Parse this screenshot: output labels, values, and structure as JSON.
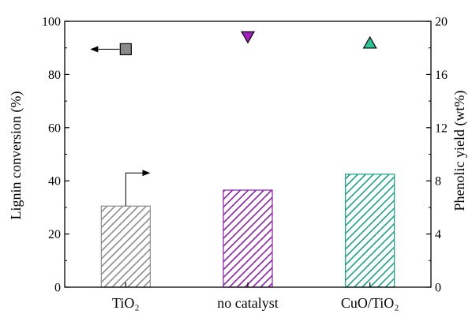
{
  "chart_data": {
    "type": "bar",
    "categories": [
      "TiO₂",
      "no catalyst",
      "CuO/TiO₂"
    ],
    "ylabel_left": "Lignin conversion (%)",
    "ylabel_right": "Phenolic yield (wt%)",
    "ylim_left": [
      0,
      100
    ],
    "yticks_left": [
      0,
      20,
      40,
      60,
      80,
      100
    ],
    "ylim_right": [
      0,
      20
    ],
    "yticks_right": [
      0,
      4,
      8,
      12,
      16,
      20
    ],
    "grid": false,
    "series": [
      {
        "axis": "left",
        "marks": "bars",
        "values": [
          30.5,
          36.5,
          42.5
        ],
        "colors": [
          "#8c8c8c",
          "#8a1ea8",
          "#1aa383"
        ],
        "pattern": "diagonal-hatch"
      },
      {
        "axis": "right",
        "marks": "points",
        "values": [
          17.9,
          18.8,
          18.4
        ],
        "shapes": [
          "square",
          "triangle-down",
          "triangle-up"
        ],
        "colors": [
          "#8a8a8a",
          "#a21ec0",
          "#2bc496"
        ]
      }
    ],
    "annotations": [
      {
        "type": "arrow",
        "series_axis": "right",
        "category": 0,
        "direction": "left"
      },
      {
        "type": "arrow",
        "series_axis": "left",
        "category": 0,
        "direction": "right"
      }
    ]
  }
}
